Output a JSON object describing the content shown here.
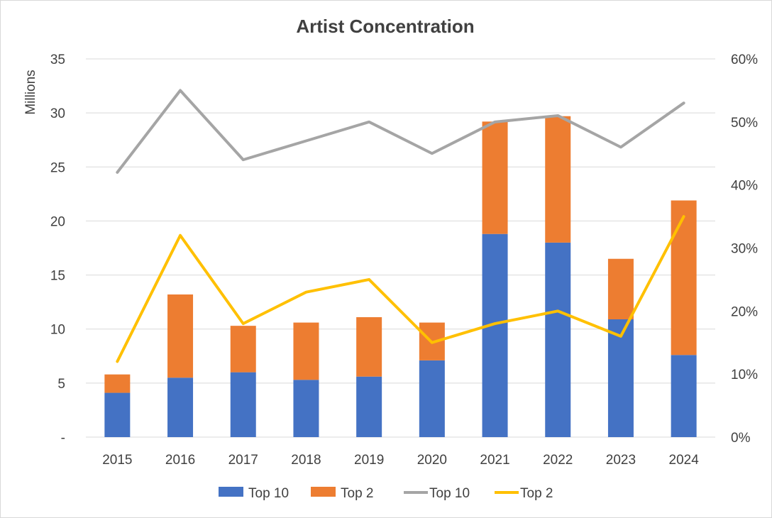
{
  "chart_data": {
    "type": "bar",
    "title": "Artist Concentration",
    "xlabel": "",
    "ylabel": "Millions",
    "ylim": [
      0,
      35
    ],
    "y_ticks": [
      "-",
      "5",
      "10",
      "15",
      "20",
      "25",
      "30",
      "35"
    ],
    "y2lim": [
      0,
      60
    ],
    "y2_ticks": [
      "0%",
      "10%",
      "20%",
      "30%",
      "40%",
      "50%",
      "60%"
    ],
    "categories": [
      "2015",
      "2016",
      "2017",
      "2018",
      "2019",
      "2020",
      "2021",
      "2022",
      "2023",
      "2024"
    ],
    "stacked_bars": [
      {
        "name": "Top 10",
        "color": "#4472c4",
        "values": [
          4.1,
          5.5,
          6.0,
          5.3,
          5.6,
          7.1,
          18.8,
          18.0,
          10.9,
          7.6
        ]
      },
      {
        "name": "Top 2",
        "color": "#ed7d31",
        "values": [
          1.7,
          7.7,
          4.3,
          5.3,
          5.5,
          3.5,
          10.4,
          11.7,
          5.6,
          14.3
        ]
      }
    ],
    "lines_secondary_axis": [
      {
        "name": "Top 10",
        "color": "#a5a5a5",
        "values": [
          42,
          55,
          44,
          47,
          50,
          45,
          50,
          51,
          46,
          53
        ]
      },
      {
        "name": "Top 2",
        "color": "#ffc000",
        "values": [
          12,
          32,
          18,
          23,
          25,
          15,
          18,
          20,
          16,
          35
        ]
      }
    ],
    "legend": [
      {
        "label": "Top 10",
        "kind": "bar",
        "color": "#4472c4"
      },
      {
        "label": "Top 2",
        "kind": "bar",
        "color": "#ed7d31"
      },
      {
        "label": "Top 10",
        "kind": "line",
        "color": "#a5a5a5"
      },
      {
        "label": "Top 2",
        "kind": "line",
        "color": "#ffc000"
      }
    ],
    "legend_position": "bottom",
    "grid": true
  }
}
